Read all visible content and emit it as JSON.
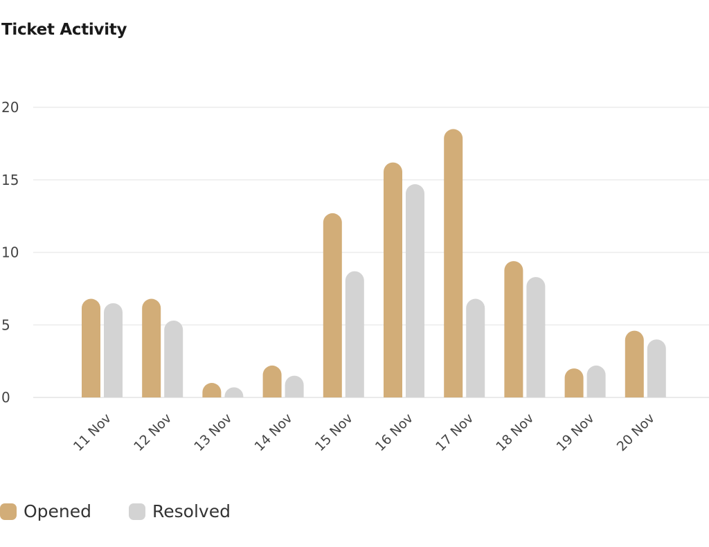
{
  "chart_data": {
    "type": "bar",
    "title": "Ticket Activity",
    "categories": [
      "11 Nov",
      "12 Nov",
      "13 Nov",
      "14 Nov",
      "15 Nov",
      "16 Nov",
      "17 Nov",
      "18 Nov",
      "19 Nov",
      "20 Nov"
    ],
    "series": [
      {
        "name": "Opened",
        "color": "#d2ad78",
        "values": [
          6.8,
          6.8,
          1.0,
          2.2,
          12.7,
          16.2,
          18.5,
          9.4,
          2.0,
          4.6
        ]
      },
      {
        "name": "Resolved",
        "color": "#d3d3d3",
        "values": [
          6.5,
          5.3,
          0.7,
          1.5,
          8.7,
          14.7,
          6.8,
          8.3,
          2.2,
          4.0
        ]
      }
    ],
    "ylim": [
      0,
      20
    ],
    "yticks": [
      0,
      5,
      10,
      15,
      20
    ],
    "grid": true,
    "legend_position": "bottom-left",
    "xlabel": "",
    "ylabel": ""
  }
}
